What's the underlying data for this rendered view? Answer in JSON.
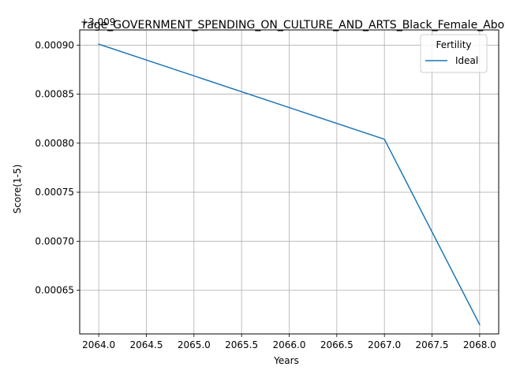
{
  "chart_data": {
    "type": "line",
    "title": "rage_GOVERNMENT_SPENDING_ON_CULTURE_AND_ARTS_Black_Female_Abov",
    "xlabel": "Years",
    "ylabel": "Score(1-5)",
    "offset_label": "+3.009",
    "x": [
      2064,
      2067,
      2068
    ],
    "x_ticks": [
      2064.0,
      2064.5,
      2065.0,
      2065.5,
      2066.0,
      2066.5,
      2067.0,
      2067.5,
      2068.0
    ],
    "x_tick_labels": [
      "2064.0",
      "2064.5",
      "2065.0",
      "2065.5",
      "2066.0",
      "2066.5",
      "2067.0",
      "2067.5",
      "2068.0"
    ],
    "y_ticks": [
      0.00065,
      0.0007,
      0.00075,
      0.0008,
      0.00085,
      0.0009
    ],
    "y_tick_labels": [
      "0.00065",
      "0.00070",
      "0.00075",
      "0.00080",
      "0.00085",
      "0.00090"
    ],
    "xlim": [
      2063.8,
      2068.2
    ],
    "ylim": [
      0.0006055,
      0.0009155
    ],
    "grid": true,
    "legend": {
      "title": "Fertility",
      "placement": "top-right"
    },
    "series": [
      {
        "name": "Ideal",
        "color": "#1f77b4",
        "values": [
          0.000901,
          0.000804,
          0.000615
        ]
      }
    ]
  }
}
